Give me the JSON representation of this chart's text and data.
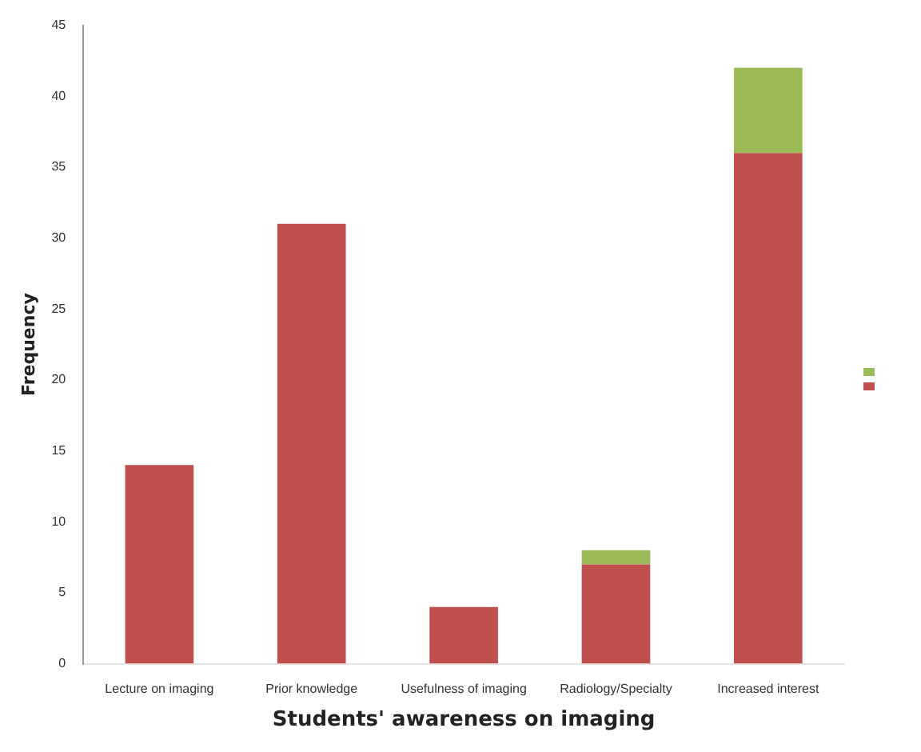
{
  "chart_data": {
    "type": "bar",
    "xlabel": "Students' awareness on imaging",
    "ylabel": "Frequency",
    "categories": [
      "Lecture on imaging",
      "Prior knowledge",
      "Usefulness of imaging",
      "Radiology/Specialty",
      "Increased interest"
    ],
    "stacked": true,
    "series": [
      {
        "color": "#c0504d",
        "values": [
          14,
          31,
          4,
          7,
          36
        ]
      },
      {
        "color": "#9bbb59",
        "values": [
          0,
          0,
          0,
          1,
          6
        ]
      }
    ],
    "ylim": [
      0,
      45
    ],
    "yticks": [
      0,
      5,
      10,
      15,
      20,
      25,
      30,
      35,
      40,
      45
    ],
    "grid": false
  }
}
